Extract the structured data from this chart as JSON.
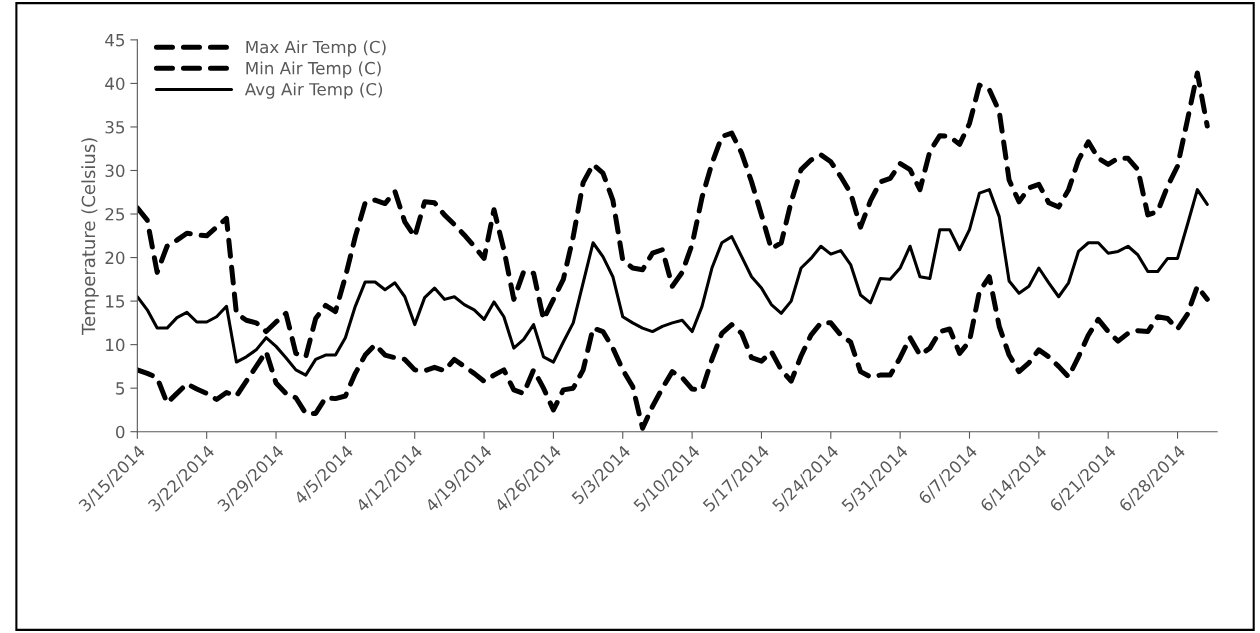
{
  "chart_data": {
    "type": "line",
    "ylabel": "Temperature (Celsius)",
    "x": [
      "2014-03-15",
      "2014-03-16",
      "2014-03-17",
      "2014-03-18",
      "2014-03-19",
      "2014-03-20",
      "2014-03-21",
      "2014-03-22",
      "2014-03-23",
      "2014-03-24",
      "2014-03-25",
      "2014-03-26",
      "2014-03-27",
      "2014-03-28",
      "2014-03-29",
      "2014-03-30",
      "2014-03-31",
      "2014-04-01",
      "2014-04-02",
      "2014-04-03",
      "2014-04-04",
      "2014-04-05",
      "2014-04-06",
      "2014-04-07",
      "2014-04-08",
      "2014-04-09",
      "2014-04-10",
      "2014-04-11",
      "2014-04-12",
      "2014-04-13",
      "2014-04-14",
      "2014-04-15",
      "2014-04-16",
      "2014-04-17",
      "2014-04-18",
      "2014-04-19",
      "2014-04-20",
      "2014-04-21",
      "2014-04-22",
      "2014-04-23",
      "2014-04-24",
      "2014-04-25",
      "2014-04-26",
      "2014-04-27",
      "2014-04-28",
      "2014-04-29",
      "2014-04-30",
      "2014-05-01",
      "2014-05-02",
      "2014-05-03",
      "2014-05-04",
      "2014-05-05",
      "2014-05-06",
      "2014-05-07",
      "2014-05-08",
      "2014-05-09",
      "2014-05-10",
      "2014-05-11",
      "2014-05-12",
      "2014-05-13",
      "2014-05-14",
      "2014-05-15",
      "2014-05-16",
      "2014-05-17",
      "2014-05-18",
      "2014-05-19",
      "2014-05-20",
      "2014-05-21",
      "2014-05-22",
      "2014-05-23",
      "2014-05-24",
      "2014-05-25",
      "2014-05-26",
      "2014-05-27",
      "2014-05-28",
      "2014-05-29",
      "2014-05-30",
      "2014-05-31",
      "2014-06-01",
      "2014-06-02",
      "2014-06-03",
      "2014-06-04",
      "2014-06-05",
      "2014-06-06",
      "2014-06-07",
      "2014-06-08",
      "2014-06-09",
      "2014-06-10",
      "2014-06-11",
      "2014-06-12",
      "2014-06-13",
      "2014-06-14",
      "2014-06-15",
      "2014-06-16",
      "2014-06-17",
      "2014-06-18",
      "2014-06-19",
      "2014-06-20",
      "2014-06-21",
      "2014-06-22",
      "2014-06-23",
      "2014-06-24",
      "2014-06-25",
      "2014-06-26",
      "2014-06-27",
      "2014-06-28",
      "2014-06-29",
      "2014-06-30",
      "2014-07-01"
    ],
    "series": [
      {
        "name": "Max Air Temp (C)",
        "color": "#000000",
        "line_style": "dashed",
        "values": [
          25.7,
          24.3,
          18.3,
          21.3,
          22.0,
          22.8,
          22.6,
          22.5,
          23.5,
          24.5,
          13.6,
          12.8,
          12.5,
          11.5,
          12.6,
          13.6,
          9.0,
          8.6,
          13.0,
          14.5,
          13.8,
          17.8,
          22.4,
          26.3,
          26.6,
          26.2,
          27.6,
          24.1,
          22.4,
          26.4,
          26.3,
          24.9,
          23.8,
          22.6,
          21.3,
          19.9,
          25.5,
          20.9,
          15.2,
          18.4,
          18.2,
          12.9,
          15.2,
          17.5,
          22.4,
          28.6,
          30.7,
          29.7,
          26.6,
          19.7,
          18.8,
          18.6,
          20.5,
          20.9,
          16.7,
          18.3,
          21.5,
          26.9,
          30.8,
          33.9,
          34.3,
          32.0,
          28.7,
          24.9,
          21.0,
          21.7,
          26.4,
          30.1,
          31.2,
          31.8,
          31.0,
          29.3,
          27.4,
          23.5,
          26.5,
          28.7,
          29.1,
          30.8,
          30.1,
          27.8,
          32.2,
          34.0,
          33.9,
          33.0,
          35.4,
          39.8,
          39.3,
          36.8,
          28.9,
          26.4,
          28.0,
          28.4,
          26.3,
          25.8,
          27.8,
          31.2,
          33.3,
          31.4,
          30.7,
          31.4,
          31.4,
          30.1,
          24.9,
          25.3,
          28.2,
          30.5,
          35.8,
          41.2,
          35.1
        ]
      },
      {
        "name": "Min Air Temp (C)",
        "color": "#000000",
        "line_style": "dashed",
        "values": [
          7.1,
          6.7,
          6.2,
          3.3,
          4.4,
          5.5,
          4.9,
          4.4,
          3.7,
          4.5,
          4.1,
          5.8,
          7.5,
          9.2,
          5.6,
          4.4,
          3.9,
          2.1,
          2.1,
          3.9,
          3.8,
          4.1,
          6.7,
          8.8,
          10.0,
          8.8,
          8.5,
          8.3,
          7.1,
          7.0,
          7.4,
          7.0,
          8.3,
          7.5,
          6.7,
          5.8,
          6.5,
          7.1,
          4.8,
          4.4,
          7.1,
          5.0,
          2.5,
          4.8,
          5.0,
          7.1,
          11.9,
          11.5,
          9.6,
          7.1,
          5.2,
          0.4,
          2.9,
          5.0,
          6.9,
          6.2,
          4.9,
          4.8,
          8.3,
          11.3,
          12.3,
          11.3,
          8.5,
          8.1,
          9.2,
          7.1,
          5.8,
          8.7,
          11.1,
          12.5,
          12.5,
          11.1,
          10.3,
          6.9,
          6.3,
          6.5,
          6.5,
          8.5,
          10.8,
          8.8,
          9.6,
          11.5,
          11.8,
          9.0,
          10.4,
          16.1,
          17.8,
          12.1,
          8.8,
          6.9,
          7.9,
          9.4,
          8.6,
          7.5,
          6.3,
          8.6,
          11.1,
          12.9,
          11.5,
          10.4,
          11.3,
          11.6,
          11.5,
          13.2,
          13.0,
          11.8,
          13.5,
          16.7,
          15.2
        ]
      },
      {
        "name": "Avg Air Temp (C)",
        "color": "#000000",
        "line_style": "solid",
        "values": [
          15.5,
          14.0,
          11.9,
          11.9,
          13.1,
          13.7,
          12.6,
          12.6,
          13.2,
          14.4,
          8.0,
          8.6,
          9.4,
          10.8,
          9.8,
          8.5,
          7.1,
          6.5,
          8.3,
          8.8,
          8.8,
          10.8,
          14.4,
          17.2,
          17.2,
          16.3,
          17.1,
          15.5,
          12.3,
          15.4,
          16.5,
          15.2,
          15.5,
          14.6,
          14.0,
          12.9,
          14.9,
          13.2,
          9.6,
          10.6,
          12.3,
          8.6,
          8.0,
          10.3,
          12.5,
          17.1,
          21.7,
          20.1,
          17.8,
          13.2,
          12.5,
          11.9,
          11.5,
          12.1,
          12.5,
          12.8,
          11.5,
          14.4,
          18.8,
          21.7,
          22.4,
          20.1,
          17.8,
          16.5,
          14.6,
          13.6,
          15.0,
          18.8,
          19.9,
          21.3,
          20.4,
          20.8,
          19.2,
          15.7,
          14.8,
          17.6,
          17.5,
          18.8,
          21.3,
          17.8,
          17.6,
          23.2,
          23.2,
          20.9,
          23.2,
          27.4,
          27.8,
          24.7,
          17.3,
          15.9,
          16.7,
          18.8,
          17.1,
          15.5,
          17.1,
          20.7,
          21.7,
          21.7,
          20.5,
          20.7,
          21.3,
          20.3,
          18.4,
          18.4,
          19.9,
          19.9,
          23.8,
          27.8,
          26.1
        ]
      }
    ],
    "xlim": [
      "2014-03-15",
      "2014-07-02"
    ],
    "xticks": [
      {
        "value": "2014-03-15",
        "label": "3/15/2014"
      },
      {
        "value": "2014-03-22",
        "label": "3/22/2014"
      },
      {
        "value": "2014-03-29",
        "label": "3/29/2014"
      },
      {
        "value": "2014-04-05",
        "label": "4/5/2014"
      },
      {
        "value": "2014-04-12",
        "label": "4/12/2014"
      },
      {
        "value": "2014-04-19",
        "label": "4/19/2014"
      },
      {
        "value": "2014-04-26",
        "label": "4/26/2014"
      },
      {
        "value": "2014-05-03",
        "label": "5/3/2014"
      },
      {
        "value": "2014-05-10",
        "label": "5/10/2014"
      },
      {
        "value": "2014-05-17",
        "label": "5/17/2014"
      },
      {
        "value": "2014-05-24",
        "label": "5/24/2014"
      },
      {
        "value": "2014-05-31",
        "label": "5/31/2014"
      },
      {
        "value": "2014-06-07",
        "label": "6/7/2014"
      },
      {
        "value": "2014-06-14",
        "label": "6/14/2014"
      },
      {
        "value": "2014-06-21",
        "label": "6/21/2014"
      },
      {
        "value": "2014-06-28",
        "label": "6/28/2014"
      }
    ],
    "ylim": [
      0,
      45
    ],
    "yticks": [
      0,
      5,
      10,
      15,
      20,
      25,
      30,
      35,
      40,
      45
    ],
    "grid": false,
    "legend": "top left",
    "marker": "none"
  }
}
